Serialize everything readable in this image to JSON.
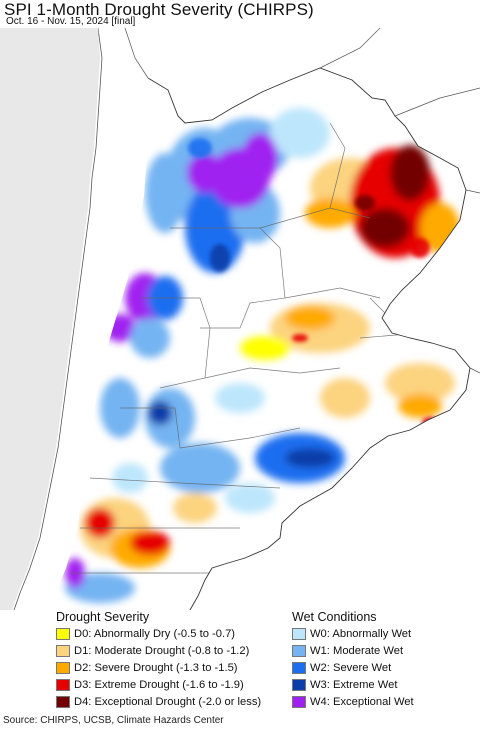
{
  "header": {
    "title": "SPI 1-Month Drought Severity (CHIRPS)",
    "subtitle": "Oct. 16 - Nov. 15, 2024 [final]"
  },
  "legend": {
    "drought": {
      "title": "Drought Severity",
      "items": [
        {
          "label": "D0: Abnormally Dry (-0.5 to -0.7)",
          "color": "#ffff00"
        },
        {
          "label": "D1: Moderate Drought (-0.8 to -1.2)",
          "color": "#fcd37f"
        },
        {
          "label": "D2: Severe Drought (-1.3 to -1.5)",
          "color": "#ffaa00"
        },
        {
          "label": "D3: Extreme Drought (-1.6 to -1.9)",
          "color": "#e60000"
        },
        {
          "label": "D4: Exceptional Drought (-2.0 or less)",
          "color": "#730000"
        }
      ]
    },
    "wet": {
      "title": "Wet Conditions",
      "items": [
        {
          "label": "W0: Abnormally Wet",
          "color": "#bde6fc"
        },
        {
          "label": "W1: Moderate Wet",
          "color": "#74b4f2"
        },
        {
          "label": "W2: Severe Wet",
          "color": "#1c6ef0"
        },
        {
          "label": "W3: Extreme Wet",
          "color": "#0a3ea8"
        },
        {
          "label": "W4: Exceptional Wet",
          "color": "#a020f0"
        }
      ]
    }
  },
  "footer": {
    "source": "Source: CHIRPS, UCSB, Climate Hazards Center"
  }
}
